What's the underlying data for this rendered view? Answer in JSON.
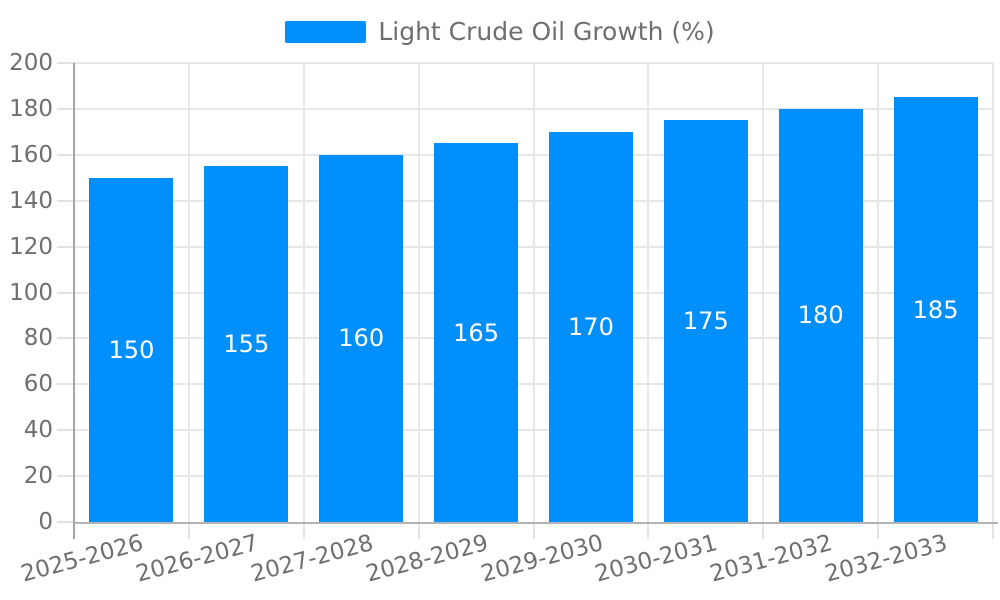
{
  "chart_data": {
    "type": "bar",
    "title": "Light Crude Oil Growth (%)",
    "legend": [
      "Light Crude Oil Growth (%)"
    ],
    "legend_position": "top",
    "categories": [
      "2025-2026",
      "2026-2027",
      "2027-2028",
      "2028-2029",
      "2029-2030",
      "2030-2031",
      "2031-2032",
      "2032-2033"
    ],
    "values": [
      150,
      155,
      160,
      165,
      170,
      175,
      180,
      185
    ],
    "bar_value_labels": [
      "150",
      "155",
      "160",
      "165",
      "170",
      "175",
      "180",
      "185"
    ],
    "xlabel": "",
    "ylabel": "",
    "ylim": [
      0,
      200
    ],
    "ytick_step": 20,
    "ytick_labels": [
      "0",
      "20",
      "40",
      "60",
      "80",
      "100",
      "120",
      "140",
      "160",
      "180",
      "200"
    ],
    "grid": true,
    "colors": {
      "bar": "#008FFB",
      "bar_value_text": "#ffffff",
      "axis_text": "#6f6f6f"
    }
  }
}
